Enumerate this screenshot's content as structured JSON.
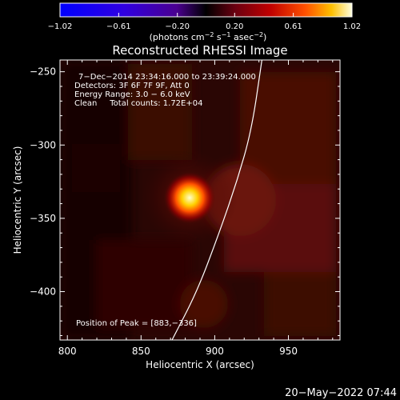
{
  "chart_data": {
    "type": "heatmap",
    "title": "Reconstructed RHESSI Image",
    "xlabel": "Heliocentric X (arcsec)",
    "ylabel": "Heliocentric Y (arcsec)",
    "xlim": [
      795,
      985
    ],
    "ylim": [
      -433,
      -242
    ],
    "x_ticks": [
      800,
      850,
      900,
      950
    ],
    "x_tick_labels": [
      "800",
      "850",
      "900",
      "950"
    ],
    "y_ticks": [
      -250,
      -300,
      -350,
      -400
    ],
    "y_tick_labels": [
      "−250",
      "−300",
      "−350",
      "−400"
    ],
    "colorbar": {
      "range": [
        -1.02,
        1.02
      ],
      "ticks": [
        -1.02,
        -0.61,
        -0.2,
        0.2,
        0.61,
        1.02
      ],
      "tick_labels": [
        "−1.02",
        "−0.61",
        "−0.20",
        "0.20",
        "0.61",
        "1.02"
      ],
      "label": "(photons cm",
      "label_exp1": "−2",
      "label_mid": " s",
      "label_exp2": "−1",
      "label_mid2": " asec",
      "label_exp3": "−2",
      "label_end": ")"
    },
    "annotations": [
      "7−Dec−2014 23:34:16.000 to 23:39:24.000",
      "Detectors: 3F 6F 7F 9F, Att 0",
      "Energy Range: 3.0 − 6.0 keV",
      "Clean     Total counts: 1.72E+04"
    ],
    "peak_label": "Position of Peak = [883,−336]",
    "peak": {
      "x": 883,
      "y": -336
    },
    "limb_curve": [
      {
        "x": 871,
        "y": -433
      },
      {
        "x": 888,
        "y": -400
      },
      {
        "x": 903,
        "y": -360
      },
      {
        "x": 915,
        "y": -325
      },
      {
        "x": 925,
        "y": -290
      },
      {
        "x": 932,
        "y": -242
      }
    ],
    "footer_timestamp": "20−May−2022 07:44"
  }
}
